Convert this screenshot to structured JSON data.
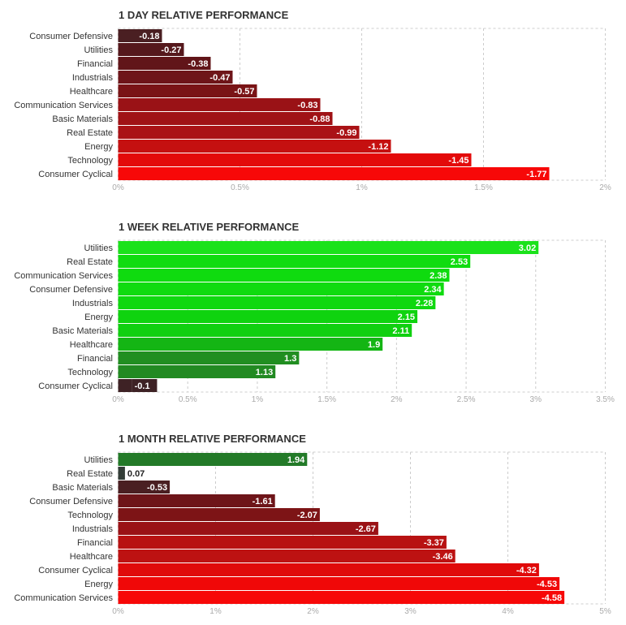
{
  "chart_data": [
    {
      "type": "bar",
      "orientation": "horizontal",
      "title": "1 DAY RELATIVE PERFORMANCE",
      "categories": [
        "Consumer Defensive",
        "Utilities",
        "Financial",
        "Industrials",
        "Healthcare",
        "Communication Services",
        "Basic Materials",
        "Real Estate",
        "Energy",
        "Technology",
        "Consumer Cyclical"
      ],
      "values": [
        -0.18,
        -0.27,
        -0.38,
        -0.47,
        -0.57,
        -0.83,
        -0.88,
        -0.99,
        -1.12,
        -1.45,
        -1.77
      ],
      "value_labels": [
        "-0.18",
        "-0.27",
        "-0.38",
        "-0.47",
        "-0.57",
        "-0.83",
        "-0.88",
        "-0.99",
        "-1.12",
        "-1.45",
        "-1.77"
      ],
      "bar_colors": [
        "#4a1f22",
        "#55181c",
        "#611519",
        "#6e1519",
        "#7a1416",
        "#9a1216",
        "#a01216",
        "#aa1216",
        "#c51010",
        "#e30a0a",
        "#f70808"
      ],
      "xlim": [
        0,
        2
      ],
      "ticks": [
        0,
        0.5,
        1,
        1.5,
        2
      ],
      "tick_labels": [
        "0%",
        "0.5%",
        "1%",
        "1.5%",
        "2%"
      ],
      "grid": true
    },
    {
      "type": "bar",
      "orientation": "horizontal",
      "title": "1 WEEK RELATIVE PERFORMANCE",
      "categories": [
        "Utilities",
        "Real Estate",
        "Communication Services",
        "Consumer Defensive",
        "Industrials",
        "Energy",
        "Basic Materials",
        "Healthcare",
        "Financial",
        "Technology",
        "Consumer Cyclical"
      ],
      "values": [
        3.02,
        2.53,
        2.38,
        2.34,
        2.28,
        2.15,
        2.11,
        1.9,
        1.3,
        1.13,
        -0.1
      ],
      "value_labels": [
        "3.02",
        "2.53",
        "2.38",
        "2.34",
        "2.28",
        "2.15",
        "2.11",
        "1.9",
        "1.3",
        "1.13",
        "-0.1"
      ],
      "bar_colors": [
        "#1be21b",
        "#10dc10",
        "#0fdb0f",
        "#0fdb0f",
        "#0fd80f",
        "#0fd30f",
        "#10d010",
        "#14b514",
        "#218e21",
        "#228a22",
        "#3e2225"
      ],
      "xlim": [
        0,
        3.5
      ],
      "ticks": [
        0,
        0.5,
        1,
        1.5,
        2,
        2.5,
        3,
        3.5
      ],
      "tick_labels": [
        "0%",
        "0.5%",
        "1%",
        "1.5%",
        "2%",
        "2.5%",
        "3%",
        "3.5%"
      ],
      "grid": true
    },
    {
      "type": "bar",
      "orientation": "horizontal",
      "title": "1 MONTH RELATIVE PERFORMANCE",
      "categories": [
        "Utilities",
        "Real Estate",
        "Basic Materials",
        "Consumer Defensive",
        "Technology",
        "Industrials",
        "Financial",
        "Healthcare",
        "Consumer Cyclical",
        "Energy",
        "Communication Services"
      ],
      "values": [
        1.94,
        0.07,
        -0.53,
        -1.61,
        -2.07,
        -2.67,
        -3.37,
        -3.46,
        -4.32,
        -4.53,
        -4.58
      ],
      "value_labels": [
        "1.94",
        "0.07",
        "-0.53",
        "-1.61",
        "-2.07",
        "-2.67",
        "-3.37",
        "-3.46",
        "-4.32",
        "-4.53",
        "-4.58"
      ],
      "bar_colors": [
        "#237a28",
        "#333d37",
        "#4a1f22",
        "#6e1519",
        "#7d1416",
        "#9a1216",
        "#b81212",
        "#bd1212",
        "#e00a0a",
        "#f00808",
        "#f70808"
      ],
      "xlim": [
        0,
        5
      ],
      "ticks": [
        0,
        1,
        2,
        3,
        4,
        5
      ],
      "tick_labels": [
        "0%",
        "1%",
        "2%",
        "3%",
        "4%",
        "5%"
      ],
      "grid": true
    }
  ]
}
